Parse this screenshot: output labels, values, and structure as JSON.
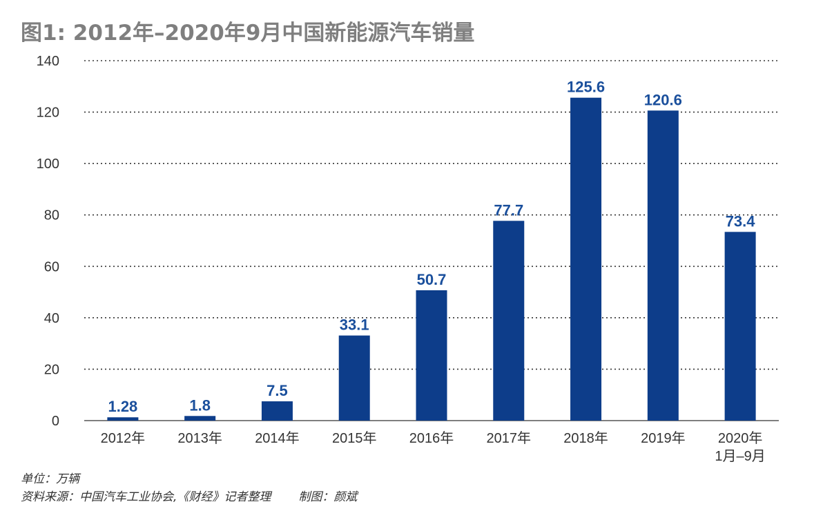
{
  "chart_data": {
    "type": "bar",
    "title": "图1: 2012年–2020年9月中国新能源汽车销量",
    "categories": [
      "2012年",
      "2013年",
      "2014年",
      "2015年",
      "2016年",
      "2017年",
      "2018年",
      "2019年",
      "2020年\n1月–9月"
    ],
    "values": [
      1.28,
      1.8,
      7.5,
      33.1,
      50.7,
      77.7,
      125.6,
      120.6,
      73.4
    ],
    "data_labels": [
      "1.28",
      "1.8",
      "7.5",
      "33.1",
      "50.7",
      "77.7",
      "125.6",
      "120.6",
      "73.4"
    ],
    "yticks": [
      0,
      20,
      40,
      60,
      80,
      100,
      120,
      140
    ],
    "ylim": [
      0,
      140
    ],
    "grid": "horizontal-dotted",
    "bar_color": "#0d3d8a",
    "label_color": "#1a4f9c"
  },
  "footer": {
    "unit": "单位：万辆",
    "source": "资料来源：中国汽车工业协会,《财经》记者整理",
    "credit": "制图：颜斌"
  }
}
